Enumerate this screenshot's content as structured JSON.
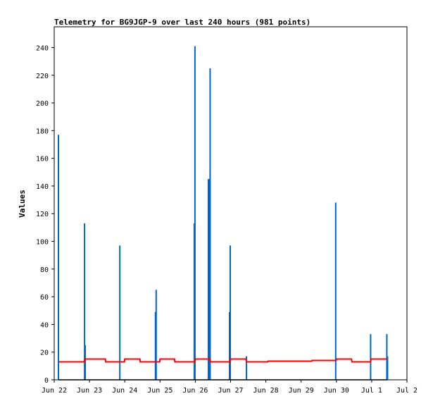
{
  "chart_data": {
    "type": "line",
    "title": "Telemetry for BG9JGP-9 over last 240 hours (981 points)",
    "xlabel": "",
    "ylabel": "Values",
    "ylim": [
      0,
      255
    ],
    "xlim": [
      0,
      10
    ],
    "grid": false,
    "legend": "none",
    "x_tick_labels": [
      "Jun 22",
      "Jun 23",
      "Jun 24",
      "Jun 25",
      "Jun 26",
      "Jun 27",
      "Jun 28",
      "Jun 29",
      "Jun 30",
      "Jul 1",
      "Jul 2"
    ],
    "x_tick_positions_days": [
      0,
      1,
      2,
      3,
      4,
      5,
      6,
      7,
      8,
      9,
      10
    ],
    "y_ticks": [
      0,
      20,
      40,
      60,
      80,
      100,
      120,
      140,
      160,
      180,
      200,
      220,
      240
    ],
    "series": [
      {
        "color": "#0066cc",
        "style": "spikes",
        "x": [
          0.12,
          0.86,
          0.88,
          1.86,
          2.87,
          2.89,
          3.97,
          3.99,
          4.37,
          4.4,
          4.42,
          4.97,
          4.99,
          5.45,
          7.98,
          8.97,
          9.43,
          9.45
        ],
        "values": [
          177,
          113,
          25,
          97,
          49,
          65,
          113,
          241,
          145,
          145,
          225,
          49,
          97,
          17,
          128,
          33,
          33,
          17
        ]
      },
      {
        "color": "#ff0000",
        "style": "step",
        "x": [
          0.12,
          0.85,
          0.86,
          1.45,
          1.46,
          1.99,
          2.0,
          2.43,
          2.44,
          2.99,
          3.0,
          3.41,
          3.42,
          3.99,
          4.0,
          4.42,
          4.43,
          4.99,
          5.0,
          5.44,
          5.45,
          6.05,
          6.06,
          7.3,
          7.31,
          7.99,
          8.0,
          8.43,
          8.44,
          8.97,
          8.98,
          9.45
        ],
        "values": [
          13,
          13,
          15,
          15,
          13,
          13,
          15,
          15,
          13,
          13,
          15,
          15,
          13,
          13,
          15,
          15,
          13,
          13,
          15,
          15,
          13,
          13,
          13.5,
          13.5,
          14,
          14,
          15,
          15,
          13,
          13,
          15,
          15
        ]
      },
      {
        "color": "#000000",
        "style": "flat",
        "x": [
          0.12,
          9.45
        ],
        "values": [
          0,
          0
        ]
      }
    ]
  }
}
